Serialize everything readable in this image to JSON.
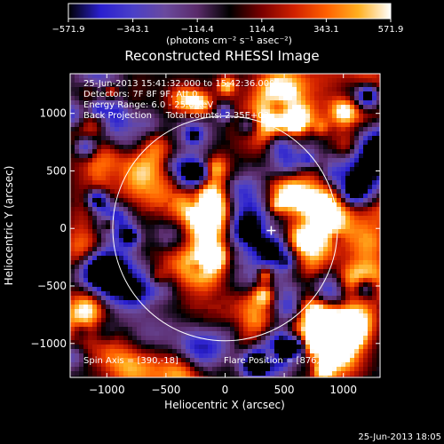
{
  "chart_data": {
    "type": "heatmap",
    "title": "Reconstructed RHESSI Image",
    "xlabel": "Heliocentric X (arcsec)",
    "ylabel": "Heliocentric Y (arcsec)",
    "xlim": [
      -1310,
      1310
    ],
    "ylim": [
      -1295,
      1345
    ],
    "x_ticks": [
      -1000,
      -500,
      0,
      500,
      1000
    ],
    "x_tick_labels": [
      "−1000",
      "−500",
      "0",
      "500",
      "1000"
    ],
    "y_ticks": [
      -1000,
      -500,
      0,
      500,
      1000
    ],
    "y_tick_labels": [
      "−1000",
      "−500",
      "0",
      "500",
      "1000"
    ],
    "colorbar": {
      "min": -571.9,
      "max": 571.9,
      "ticks": [
        -571.9,
        -343.1,
        -114.4,
        114.4,
        343.1,
        571.9
      ],
      "tick_labels": [
        "−571.9",
        "−343.1",
        "−114.4",
        "114.4",
        "343.1",
        "571.9"
      ],
      "unit_label": "(photons cm⁻² s⁻¹ asec⁻²)"
    },
    "annotations": [
      "25-Jun-2013 15:41:32.000 to 15:42:36.000",
      "Detectors: 7F 8F 9F, Att 0",
      "Energy Range: 6.0 - 25.0 keV",
      "Back Projection     Total counts: 2.35E+03"
    ],
    "spin_axis": "Spin Axis = [390,-18]",
    "flare_position": "Flare Position = [876,-261]",
    "limb_circle": {
      "center": [
        0,
        0
      ],
      "radius_arcsec": 950
    },
    "cross_marker": [
      390,
      -18
    ],
    "colormap": [
      "#000000",
      "#2a1fd0",
      "#4a3fc8",
      "#6a4a9e",
      "#5a2b6a",
      "#000000",
      "#7a0000",
      "#d02000",
      "#ff6000",
      "#ffb020",
      "#ffffff"
    ],
    "grid": false
  },
  "footer_timestamp": "25-Jun-2013 18:05"
}
